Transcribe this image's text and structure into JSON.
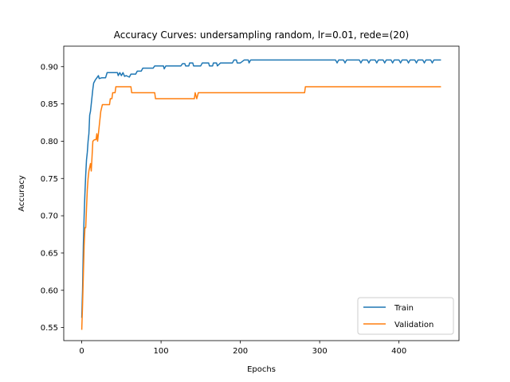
{
  "chart_data": {
    "type": "line",
    "title": "Accuracy Curves: undersampling random, lr=0.01, rede=(20)",
    "xlabel": "Epochs",
    "ylabel": "Accuracy",
    "xlim": [
      -22.7,
      475.7
    ],
    "ylim": [
      0.5325,
      0.9275
    ],
    "xticks": [
      0,
      100,
      200,
      300,
      400
    ],
    "yticks": [
      0.55,
      0.6,
      0.65,
      0.7,
      0.75,
      0.8,
      0.85,
      0.9
    ],
    "ytick_labels": [
      "0.55",
      "0.60",
      "0.65",
      "0.70",
      "0.75",
      "0.80",
      "0.85",
      "0.90"
    ],
    "grid": false,
    "legend_position": "lower-right",
    "series": [
      {
        "name": "Train",
        "color": "#1f77b4",
        "points": [
          [
            0,
            0.563
          ],
          [
            1,
            0.6
          ],
          [
            2,
            0.66
          ],
          [
            3,
            0.7
          ],
          [
            4,
            0.73
          ],
          [
            5,
            0.755
          ],
          [
            6,
            0.775
          ],
          [
            7,
            0.785
          ],
          [
            8,
            0.8
          ],
          [
            9,
            0.81
          ],
          [
            10,
            0.835
          ],
          [
            11,
            0.84
          ],
          [
            12,
            0.85
          ],
          [
            13,
            0.86
          ],
          [
            14,
            0.87
          ],
          [
            15,
            0.878
          ],
          [
            17,
            0.882
          ],
          [
            19,
            0.885
          ],
          [
            21,
            0.888
          ],
          [
            22,
            0.884
          ],
          [
            25,
            0.885
          ],
          [
            30,
            0.885
          ],
          [
            32,
            0.892
          ],
          [
            45,
            0.892
          ],
          [
            46,
            0.888
          ],
          [
            48,
            0.892
          ],
          [
            50,
            0.888
          ],
          [
            52,
            0.892
          ],
          [
            54,
            0.887
          ],
          [
            56,
            0.888
          ],
          [
            60,
            0.886
          ],
          [
            62,
            0.89
          ],
          [
            68,
            0.89
          ],
          [
            70,
            0.894
          ],
          [
            75,
            0.894
          ],
          [
            77,
            0.898
          ],
          [
            90,
            0.898
          ],
          [
            92,
            0.901
          ],
          [
            103,
            0.901
          ],
          [
            104,
            0.897
          ],
          [
            106,
            0.901
          ],
          [
            125,
            0.901
          ],
          [
            127,
            0.904
          ],
          [
            130,
            0.904
          ],
          [
            131,
            0.901
          ],
          [
            135,
            0.901
          ],
          [
            136,
            0.905
          ],
          [
            140,
            0.905
          ],
          [
            141,
            0.901
          ],
          [
            150,
            0.901
          ],
          [
            152,
            0.905
          ],
          [
            160,
            0.905
          ],
          [
            161,
            0.901
          ],
          [
            165,
            0.901
          ],
          [
            166,
            0.905
          ],
          [
            170,
            0.905
          ],
          [
            171,
            0.901
          ],
          [
            175,
            0.905
          ],
          [
            190,
            0.905
          ],
          [
            192,
            0.909
          ],
          [
            195,
            0.909
          ],
          [
            196,
            0.905
          ],
          [
            200,
            0.905
          ],
          [
            205,
            0.909
          ],
          [
            210,
            0.909
          ],
          [
            211,
            0.905
          ],
          [
            213,
            0.909
          ],
          [
            320,
            0.909
          ],
          [
            322,
            0.905
          ],
          [
            324,
            0.909
          ],
          [
            330,
            0.909
          ],
          [
            332,
            0.905
          ],
          [
            334,
            0.909
          ],
          [
            350,
            0.909
          ],
          [
            352,
            0.905
          ],
          [
            354,
            0.909
          ],
          [
            360,
            0.909
          ],
          [
            362,
            0.905
          ],
          [
            364,
            0.909
          ],
          [
            370,
            0.909
          ],
          [
            372,
            0.905
          ],
          [
            374,
            0.909
          ],
          [
            380,
            0.909
          ],
          [
            382,
            0.905
          ],
          [
            384,
            0.909
          ],
          [
            390,
            0.909
          ],
          [
            392,
            0.905
          ],
          [
            394,
            0.909
          ],
          [
            400,
            0.909
          ],
          [
            402,
            0.905
          ],
          [
            404,
            0.909
          ],
          [
            410,
            0.909
          ],
          [
            412,
            0.905
          ],
          [
            414,
            0.909
          ],
          [
            420,
            0.909
          ],
          [
            422,
            0.905
          ],
          [
            424,
            0.909
          ],
          [
            430,
            0.909
          ],
          [
            432,
            0.905
          ],
          [
            434,
            0.909
          ],
          [
            440,
            0.909
          ],
          [
            442,
            0.905
          ],
          [
            444,
            0.909
          ],
          [
            453,
            0.909
          ]
        ]
      },
      {
        "name": "Validation",
        "color": "#ff7f0e",
        "points": [
          [
            0,
            0.547
          ],
          [
            1,
            0.58
          ],
          [
            2,
            0.62
          ],
          [
            3,
            0.66
          ],
          [
            4,
            0.684
          ],
          [
            5,
            0.684
          ],
          [
            6,
            0.71
          ],
          [
            7,
            0.735
          ],
          [
            8,
            0.75
          ],
          [
            9,
            0.76
          ],
          [
            10,
            0.765
          ],
          [
            11,
            0.77
          ],
          [
            12,
            0.76
          ],
          [
            13,
            0.78
          ],
          [
            14,
            0.8
          ],
          [
            16,
            0.802
          ],
          [
            18,
            0.802
          ],
          [
            19,
            0.81
          ],
          [
            20,
            0.8
          ],
          [
            21,
            0.81
          ],
          [
            22,
            0.82
          ],
          [
            23,
            0.83
          ],
          [
            24,
            0.84
          ],
          [
            26,
            0.849
          ],
          [
            28,
            0.849
          ],
          [
            35,
            0.849
          ],
          [
            36,
            0.857
          ],
          [
            38,
            0.857
          ],
          [
            39,
            0.865
          ],
          [
            42,
            0.865
          ],
          [
            43,
            0.873
          ],
          [
            62,
            0.873
          ],
          [
            63,
            0.865
          ],
          [
            92,
            0.865
          ],
          [
            93,
            0.857
          ],
          [
            142,
            0.857
          ],
          [
            143,
            0.865
          ],
          [
            145,
            0.857
          ],
          [
            147,
            0.865
          ],
          [
            281,
            0.865
          ],
          [
            282,
            0.873
          ],
          [
            453,
            0.873
          ]
        ]
      }
    ]
  }
}
